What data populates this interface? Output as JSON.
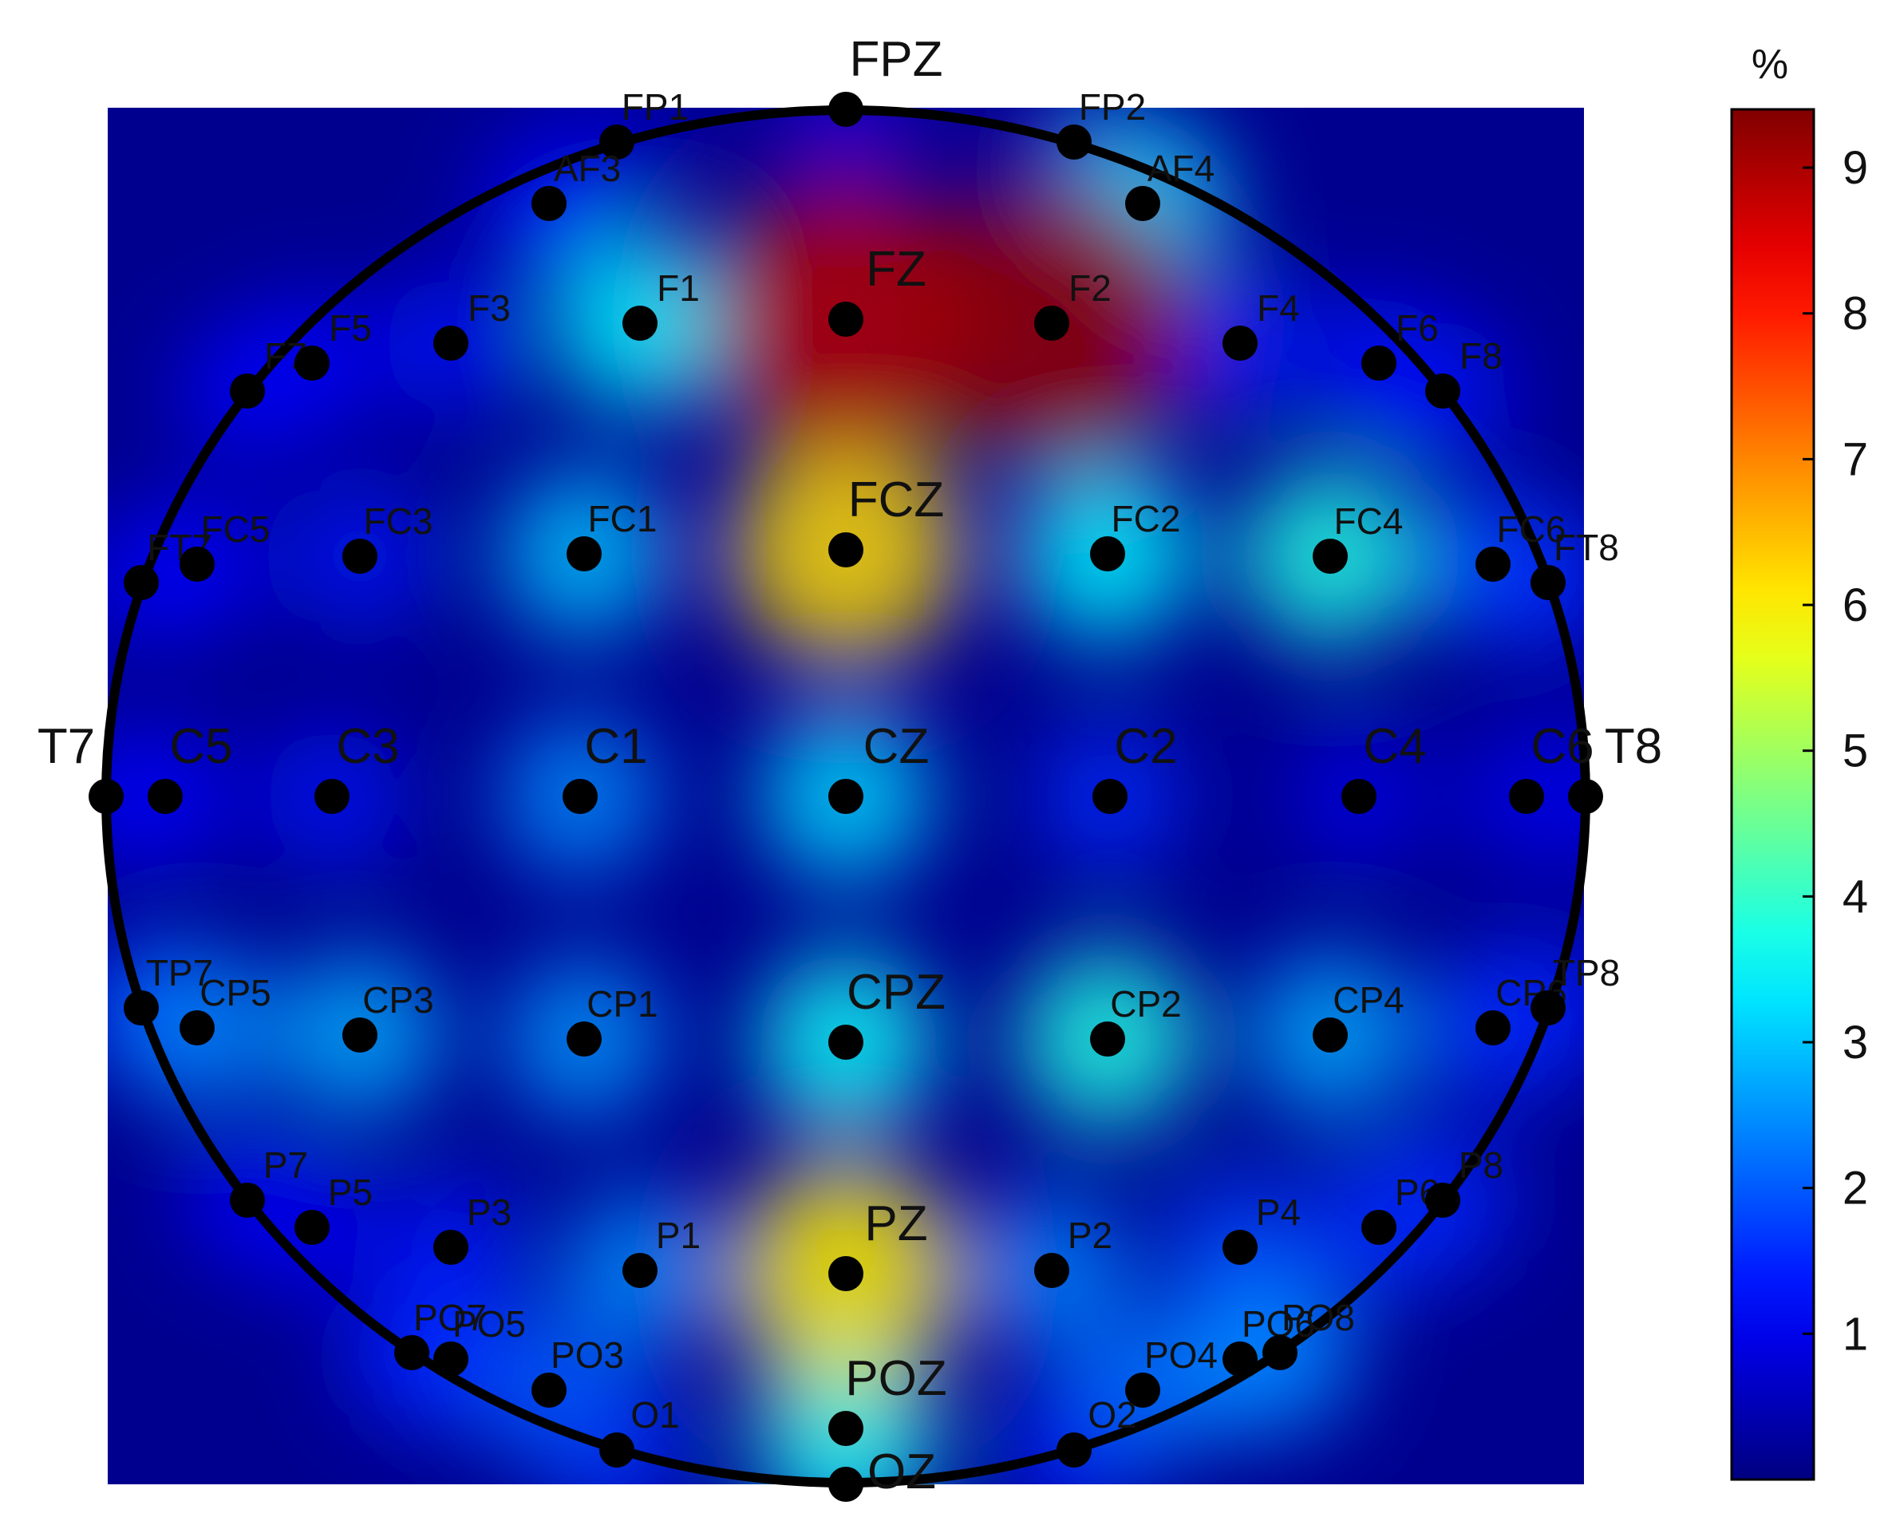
{
  "chart_data": {
    "type": "heatmap",
    "title": "",
    "colorbar": {
      "unit_label": "%",
      "ticks": [
        1,
        2,
        3,
        4,
        5,
        6,
        7,
        8,
        9
      ],
      "range": [
        0,
        9.4
      ],
      "colormap": "jet"
    },
    "electrodes": [
      {
        "name": "FPZ",
        "value": 0.8
      },
      {
        "name": "FP1",
        "value": 0.6
      },
      {
        "name": "FP2",
        "value": 0.6
      },
      {
        "name": "AF3",
        "value": 1.2
      },
      {
        "name": "AF4",
        "value": 3.2
      },
      {
        "name": "F7",
        "value": 1.2
      },
      {
        "name": "F5",
        "value": 1.2
      },
      {
        "name": "F3",
        "value": 1.3
      },
      {
        "name": "F1",
        "value": 3.5
      },
      {
        "name": "FZ",
        "value": 8.9
      },
      {
        "name": "F2",
        "value": 9.2
      },
      {
        "name": "F4",
        "value": 1.5
      },
      {
        "name": "F6",
        "value": 1.3
      },
      {
        "name": "F8",
        "value": 1.3
      },
      {
        "name": "FT7",
        "value": 1.0
      },
      {
        "name": "FC5",
        "value": 1.2
      },
      {
        "name": "FC3",
        "value": 1.4
      },
      {
        "name": "FC1",
        "value": 3.0
      },
      {
        "name": "FCZ",
        "value": 6.2
      },
      {
        "name": "FC2",
        "value": 3.5
      },
      {
        "name": "FC4",
        "value": 3.8
      },
      {
        "name": "FC6",
        "value": 1.8
      },
      {
        "name": "FT8",
        "value": 1.3
      },
      {
        "name": "T7",
        "value": 0.9
      },
      {
        "name": "C5",
        "value": 1.2
      },
      {
        "name": "C3",
        "value": 1.3
      },
      {
        "name": "C1",
        "value": 2.5
      },
      {
        "name": "CZ",
        "value": 3.2
      },
      {
        "name": "C2",
        "value": 1.6
      },
      {
        "name": "C4",
        "value": 1.0
      },
      {
        "name": "C6",
        "value": 1.0
      },
      {
        "name": "T8",
        "value": 1.0
      },
      {
        "name": "TP7",
        "value": 1.2
      },
      {
        "name": "CP5",
        "value": 2.5
      },
      {
        "name": "CP3",
        "value": 2.8
      },
      {
        "name": "CP1",
        "value": 2.6
      },
      {
        "name": "CPZ",
        "value": 3.6
      },
      {
        "name": "CP2",
        "value": 3.8
      },
      {
        "name": "CP4",
        "value": 2.8
      },
      {
        "name": "CP6",
        "value": 1.6
      },
      {
        "name": "TP8",
        "value": 1.4
      },
      {
        "name": "P7",
        "value": 1.1
      },
      {
        "name": "P5",
        "value": 1.1
      },
      {
        "name": "P3",
        "value": 1.4
      },
      {
        "name": "P1",
        "value": 2.5
      },
      {
        "name": "PZ",
        "value": 6.0
      },
      {
        "name": "P2",
        "value": 2.4
      },
      {
        "name": "P4",
        "value": 1.8
      },
      {
        "name": "P6",
        "value": 1.6
      },
      {
        "name": "P8",
        "value": 1.5
      },
      {
        "name": "PO7",
        "value": 1.3
      },
      {
        "name": "PO5",
        "value": 1.6
      },
      {
        "name": "PO3",
        "value": 2.0
      },
      {
        "name": "POZ",
        "value": 3.8
      },
      {
        "name": "PO4",
        "value": 2.2
      },
      {
        "name": "PO6",
        "value": 2.4
      },
      {
        "name": "PO8",
        "value": 2.4
      },
      {
        "name": "O1",
        "value": 1.6
      },
      {
        "name": "OZ",
        "value": 1.8
      },
      {
        "name": "O2",
        "value": 1.4
      }
    ]
  }
}
